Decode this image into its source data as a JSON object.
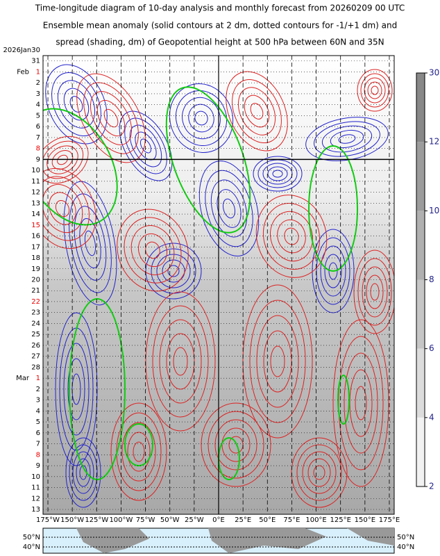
{
  "chart_data": {
    "type": "hovmoller",
    "title_lines": [
      "Time-longitude diagram of 10-day analysis and monthly forecast from 20260209 00 UTC",
      "Ensemble mean anomaly (solid contours at 2 dm, dotted contours for -1/+1 dm) and",
      "spread (shading, dm) of Geopotential height at 500 hPa between 60N and 35N"
    ],
    "y_categories": [
      {
        "prefix": "2026",
        "day": "Jan30"
      },
      {
        "day": "31"
      },
      {
        "prefix": "Feb",
        "day": "1",
        "sunday": true
      },
      {
        "day": "2"
      },
      {
        "day": "3"
      },
      {
        "day": "4"
      },
      {
        "day": "5"
      },
      {
        "day": "6"
      },
      {
        "day": "7"
      },
      {
        "day": "8",
        "sunday": true
      },
      {
        "day": "9"
      },
      {
        "day": "10"
      },
      {
        "day": "11"
      },
      {
        "day": "12"
      },
      {
        "day": "13"
      },
      {
        "day": "14"
      },
      {
        "day": "15",
        "sunday": true
      },
      {
        "day": "16"
      },
      {
        "day": "17"
      },
      {
        "day": "18"
      },
      {
        "day": "19"
      },
      {
        "day": "20"
      },
      {
        "day": "21"
      },
      {
        "day": "22",
        "sunday": true
      },
      {
        "day": "23"
      },
      {
        "day": "24"
      },
      {
        "day": "25"
      },
      {
        "day": "26"
      },
      {
        "day": "27"
      },
      {
        "day": "28"
      },
      {
        "prefix": "Mar",
        "day": "1",
        "sunday": true
      },
      {
        "day": "2"
      },
      {
        "day": "3"
      },
      {
        "day": "4"
      },
      {
        "day": "5"
      },
      {
        "day": "6"
      },
      {
        "day": "7"
      },
      {
        "day": "8",
        "sunday": true
      },
      {
        "day": "9"
      },
      {
        "day": "10"
      },
      {
        "day": "11"
      },
      {
        "day": "12"
      },
      {
        "day": "13"
      }
    ],
    "analysis_boundary_day": "9",
    "xlim": [
      -180,
      180
    ],
    "xticks": [
      {
        "value": -175,
        "label": "175°W"
      },
      {
        "value": -150,
        "label": "150°W"
      },
      {
        "value": -125,
        "label": "125°W"
      },
      {
        "value": -100,
        "label": "100°W"
      },
      {
        "value": -75,
        "label": "75°W"
      },
      {
        "value": -50,
        "label": "50°W"
      },
      {
        "value": -25,
        "label": "25°W"
      },
      {
        "value": 0,
        "label": "0°E"
      },
      {
        "value": 25,
        "label": "25°E"
      },
      {
        "value": 50,
        "label": "50°E"
      },
      {
        "value": 75,
        "label": "75°E"
      },
      {
        "value": 100,
        "label": "100°E"
      },
      {
        "value": 125,
        "label": "125°E"
      },
      {
        "value": 150,
        "label": "150°E"
      },
      {
        "value": 175,
        "label": "175°E"
      }
    ],
    "colorbar_ticks": [
      2,
      4,
      6,
      8,
      10,
      12,
      30
    ],
    "map_lat_labels": [
      "50°N",
      "40°N"
    ]
  }
}
